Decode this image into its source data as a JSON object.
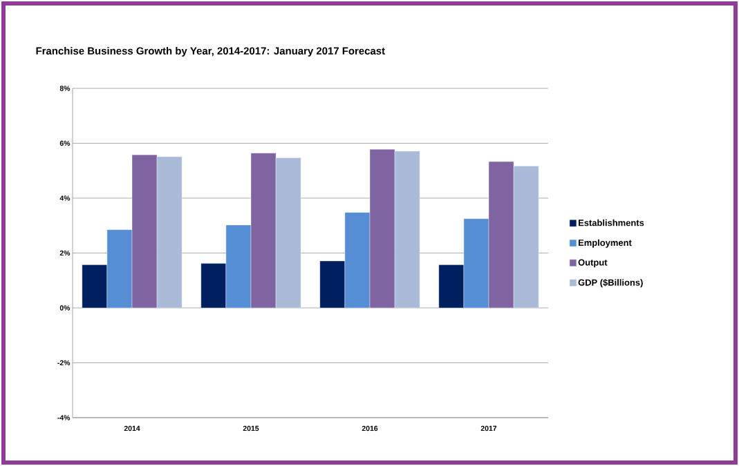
{
  "chart_data": {
    "type": "bar",
    "title": "Franchise Business Growth by Year, 2014-2017:  January 2017 Forecast",
    "categories": [
      "2014",
      "2015",
      "2016",
      "2017"
    ],
    "series": [
      {
        "name": "Establishments",
        "color": "#001f5f",
        "values": [
          1.57,
          1.62,
          1.71,
          1.57
        ]
      },
      {
        "name": "Employment",
        "color": "#558ed5",
        "values": [
          2.85,
          3.02,
          3.48,
          3.25
        ]
      },
      {
        "name": "Output",
        "color": "#8064a2",
        "values": [
          5.58,
          5.64,
          5.78,
          5.33
        ]
      },
      {
        "name": "GDP ($Billions)",
        "color": "#a9bbd9",
        "values": [
          5.51,
          5.47,
          5.71,
          5.17
        ]
      }
    ],
    "ylim": [
      -4,
      8
    ],
    "yticks": [
      {
        "value": -4,
        "label": "-4%"
      },
      {
        "value": -2,
        "label": "-2%"
      },
      {
        "value": 0,
        "label": "0%"
      },
      {
        "value": 2,
        "label": "2%"
      },
      {
        "value": 4,
        "label": "4%"
      },
      {
        "value": 6,
        "label": "6%"
      },
      {
        "value": 8,
        "label": "8%"
      }
    ],
    "grid": "y",
    "legend": "right"
  }
}
